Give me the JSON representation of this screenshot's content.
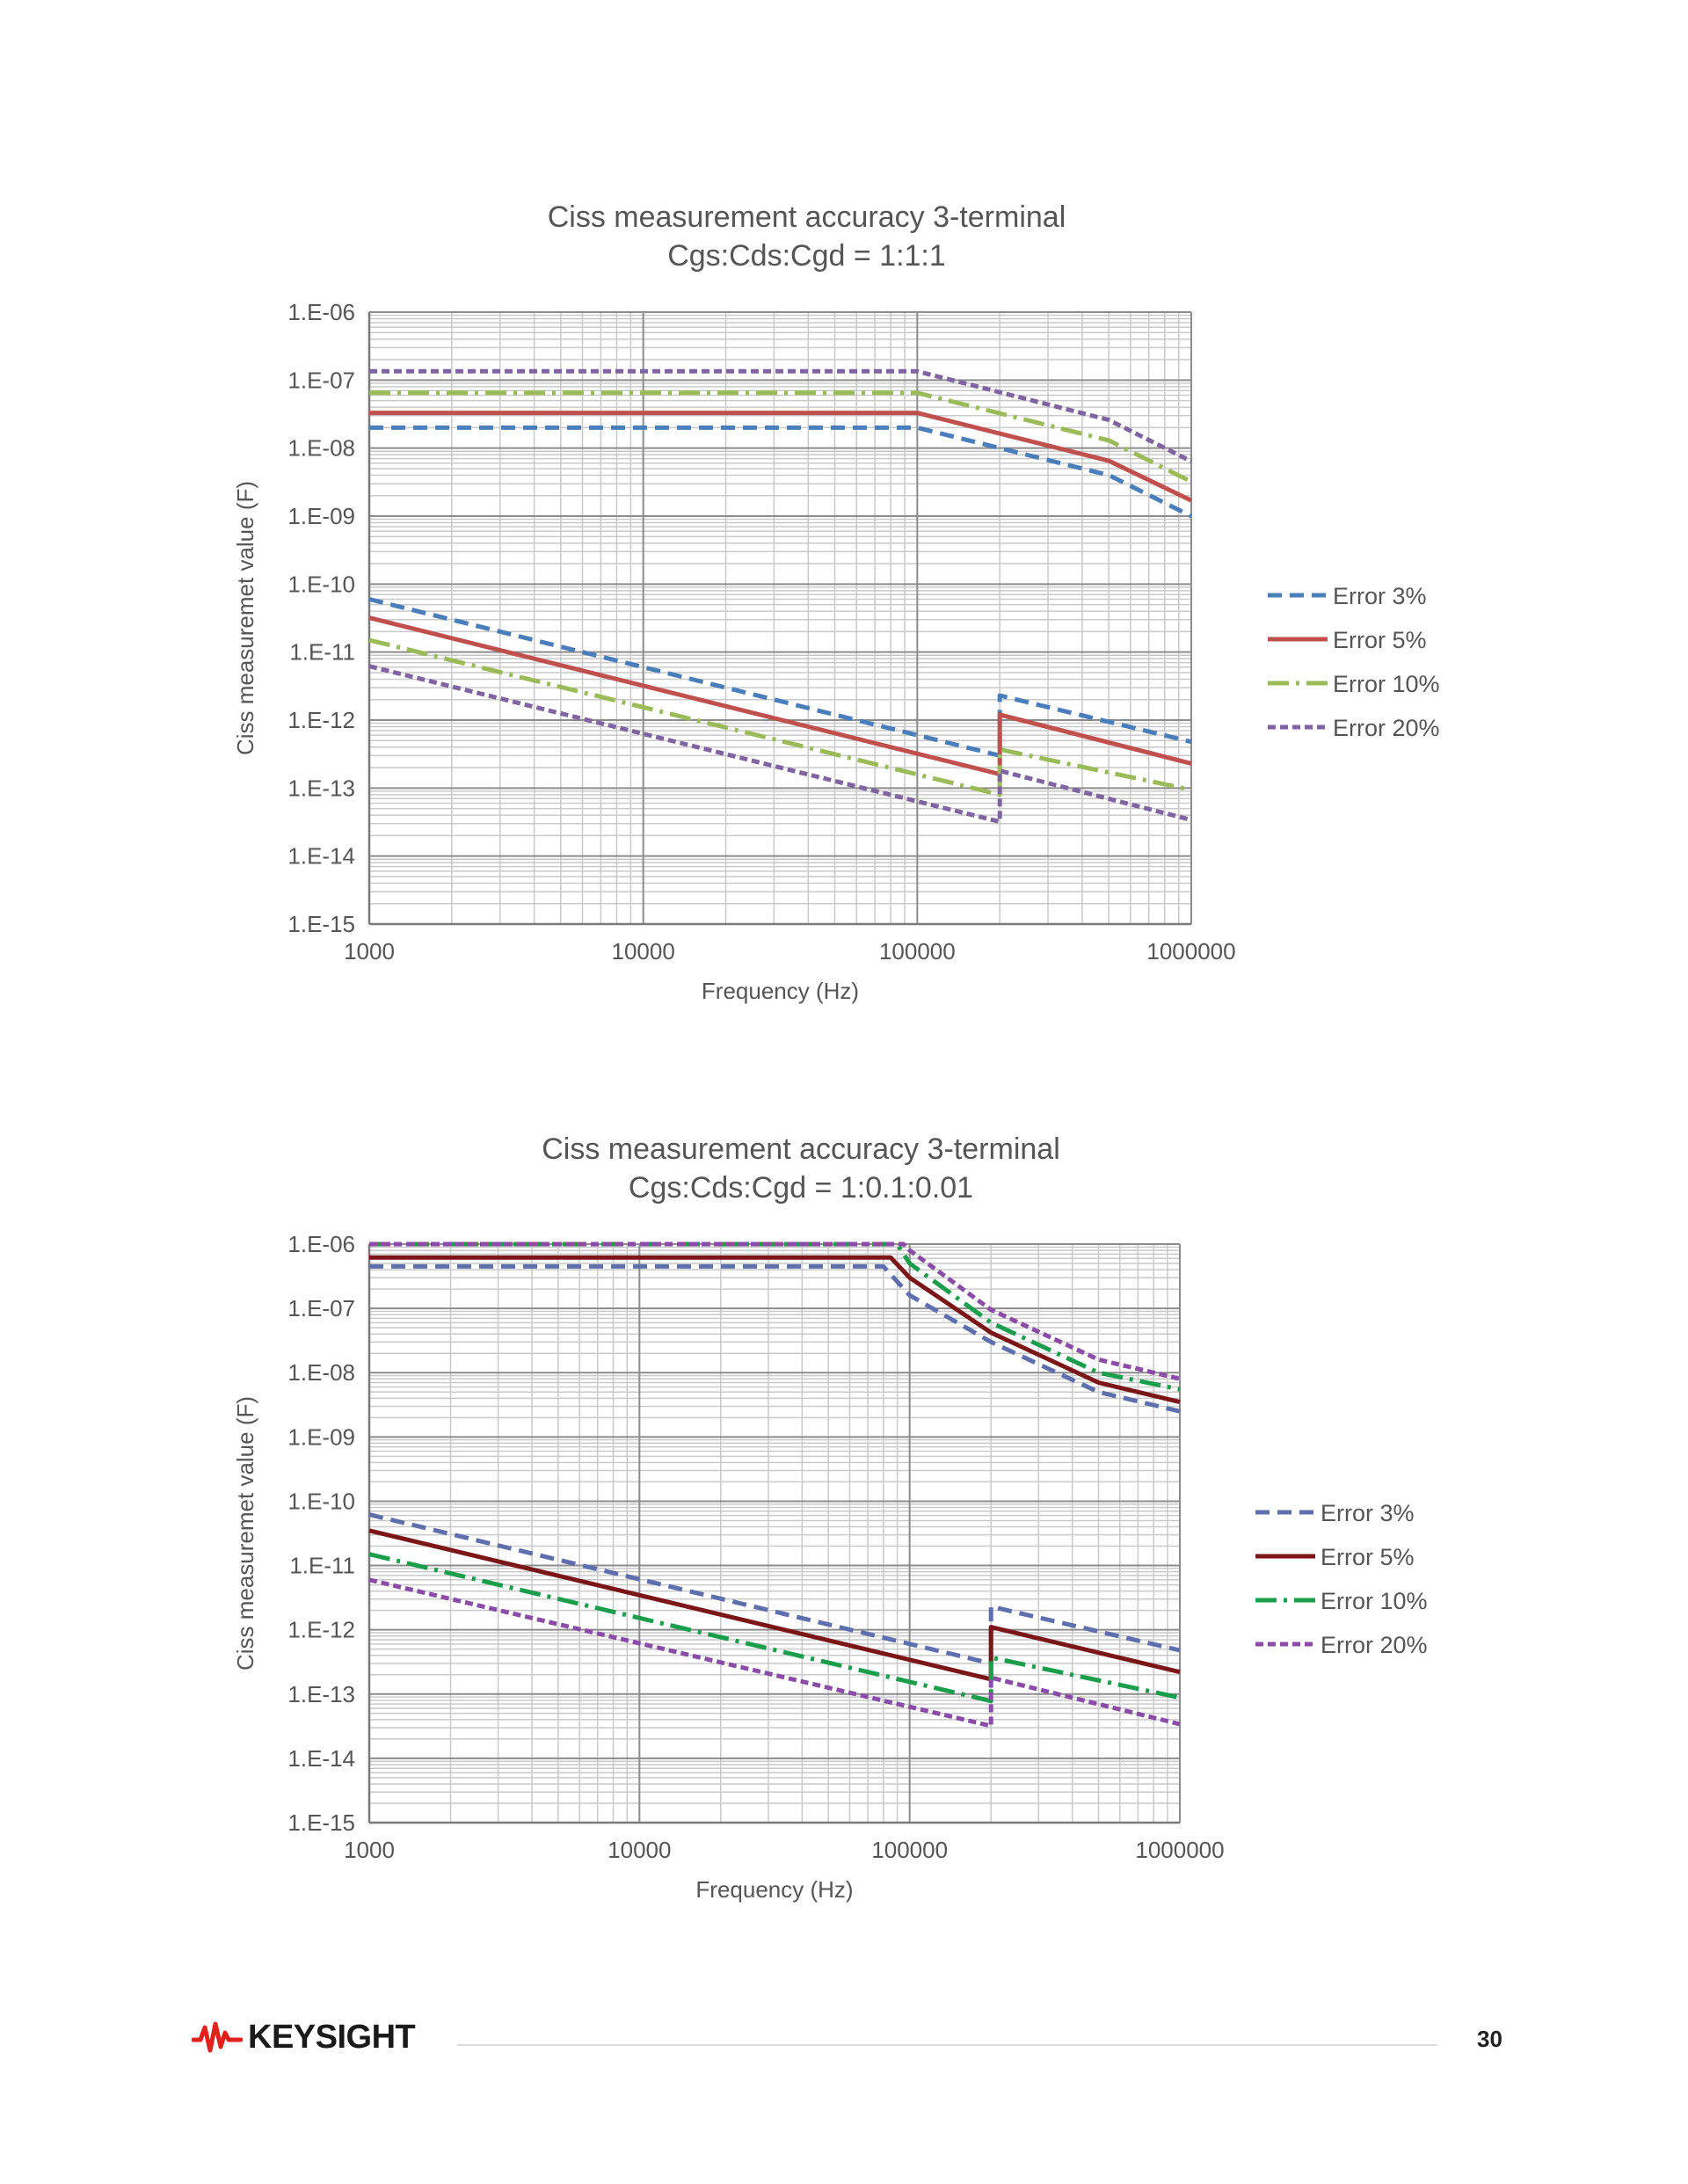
{
  "chart_data": [
    {
      "type": "line",
      "title": "Ciss measurement accuracy 3-terminal",
      "subtitle": "Cgs:Cds:Cgd = 1:1:1",
      "xlabel": "Frequency (Hz)",
      "ylabel": "Ciss measuremet value (F)",
      "x_scale": "log",
      "y_scale": "log",
      "xlim": [
        1000,
        1000000
      ],
      "ylim": [
        1e-15,
        1e-06
      ],
      "x_ticks": [
        "1000",
        "10000",
        "100000",
        "1000000"
      ],
      "y_ticks": [
        "1.E-15",
        "1.E-14",
        "1.E-13",
        "1.E-12",
        "1.E-11",
        "1.E-10",
        "1.E-09",
        "1.E-08",
        "1.E-07",
        "1.E-06"
      ],
      "grid": true,
      "legend": "right",
      "series": [
        {
          "name": "Error 3%",
          "color": "#4a7ebb",
          "dash": "dashed",
          "upper": {
            "x": [
              1000,
              100000,
              500000,
              1000000
            ],
            "y": [
              2e-08,
              2e-08,
              4e-09,
              1e-09
            ]
          },
          "lower": {
            "x": [
              1000,
              200000,
              200000,
              1000000
            ],
            "y": [
              6e-11,
              3e-13,
              2.3e-12,
              4.8e-13
            ]
          }
        },
        {
          "name": "Error 5%",
          "color": "#c0504d",
          "dash": "solid",
          "upper": {
            "x": [
              1000,
              100000,
              500000,
              1000000
            ],
            "y": [
              3.3e-08,
              3.3e-08,
              6.5e-09,
              1.7e-09
            ]
          },
          "lower": {
            "x": [
              1000,
              200000,
              200000,
              1000000
            ],
            "y": [
              3.2e-11,
              1.6e-13,
              1.2e-12,
              2.3e-13
            ]
          }
        },
        {
          "name": "Error 10%",
          "color": "#9bbb59",
          "dash": "dashdot",
          "upper": {
            "x": [
              1000,
              100000,
              500000,
              1000000
            ],
            "y": [
              6.5e-08,
              6.5e-08,
              1.3e-08,
              3.2e-09
            ]
          },
          "lower": {
            "x": [
              1000,
              200000,
              200000,
              1000000
            ],
            "y": [
              1.5e-11,
              8e-14,
              3.7e-13,
              9.4e-14
            ]
          }
        },
        {
          "name": "Error 20%",
          "color": "#8064a2",
          "dash": "dotted",
          "upper": {
            "x": [
              1000,
              100000,
              500000,
              1000000
            ],
            "y": [
              1.35e-07,
              1.35e-07,
              2.6e-08,
              6.4e-09
            ]
          },
          "lower": {
            "x": [
              1000,
              200000,
              200000,
              1000000
            ],
            "y": [
              6.2e-12,
              3.2e-14,
              1.8e-13,
              3.4e-14
            ]
          }
        }
      ]
    },
    {
      "type": "line",
      "title": "Ciss measurement accuracy 3-terminal",
      "subtitle": "Cgs:Cds:Cgd = 1:0.1:0.01",
      "xlabel": "Frequency (Hz)",
      "ylabel": "Ciss measuremet value (F)",
      "x_scale": "log",
      "y_scale": "log",
      "xlim": [
        1000,
        1000000
      ],
      "ylim": [
        1e-15,
        1e-06
      ],
      "x_ticks": [
        "1000",
        "10000",
        "100000",
        "1000000"
      ],
      "y_ticks": [
        "1.E-15",
        "1.E-14",
        "1.E-13",
        "1.E-12",
        "1.E-11",
        "1.E-10",
        "1.E-09",
        "1.E-08",
        "1.E-07",
        "1.E-06"
      ],
      "grid": true,
      "legend": "right",
      "series": [
        {
          "name": "Error 3%",
          "color": "#5e6fae",
          "dash": "dashed",
          "upper": {
            "x": [
              1000,
              80000,
              100000,
              200000,
              500000,
              1000000
            ],
            "y": [
              4.5e-07,
              4.5e-07,
              1.6e-07,
              3e-08,
              5e-09,
              2.5e-09
            ]
          },
          "lower": {
            "x": [
              1000,
              200000,
              200000,
              1000000
            ],
            "y": [
              6.2e-11,
              3e-13,
              2.3e-12,
              4.8e-13
            ]
          }
        },
        {
          "name": "Error 5%",
          "color": "#7b1618",
          "dash": "solid",
          "upper": {
            "x": [
              1000,
              85000,
              100000,
              200000,
              500000,
              1000000
            ],
            "y": [
              6.2e-07,
              6.2e-07,
              3e-07,
              4.2e-08,
              7e-09,
              3.5e-09
            ]
          },
          "lower": {
            "x": [
              1000,
              200000,
              200000,
              1000000
            ],
            "y": [
              3.5e-11,
              1.7e-13,
              1.1e-12,
              2.2e-13
            ]
          }
        },
        {
          "name": "Error 10%",
          "color": "#1a9e4b",
          "dash": "dashdot",
          "upper": {
            "x": [
              1000,
              90000,
              100000,
              200000,
              500000,
              1000000
            ],
            "y": [
              1e-06,
              1e-06,
              5e-07,
              6e-08,
              1e-08,
              5.5e-09
            ]
          },
          "lower": {
            "x": [
              1000,
              200000,
              200000,
              1000000
            ],
            "y": [
              1.5e-11,
              7.8e-14,
              3.7e-13,
              8.8e-14
            ]
          }
        },
        {
          "name": "Error 20%",
          "color": "#8b4ca8",
          "dash": "dotted",
          "upper": {
            "x": [
              1000,
              95000,
              100000,
              200000,
              500000,
              1000000
            ],
            "y": [
              1e-06,
              1e-06,
              8e-07,
              9.5e-08,
              1.6e-08,
              8e-09
            ]
          },
          "lower": {
            "x": [
              1000,
              200000,
              200000,
              1000000
            ],
            "y": [
              6e-12,
              3.2e-14,
              1.8e-13,
              3.4e-14
            ]
          }
        }
      ]
    }
  ],
  "footer": {
    "brand": "KEYSIGHT",
    "page_number": "30"
  },
  "icons": {
    "logo": "keysight-wave-icon"
  },
  "colors": {
    "logo_red": "#e1211c",
    "grid_major": "#8c8c8c",
    "grid_minor": "#c9c9c9"
  }
}
